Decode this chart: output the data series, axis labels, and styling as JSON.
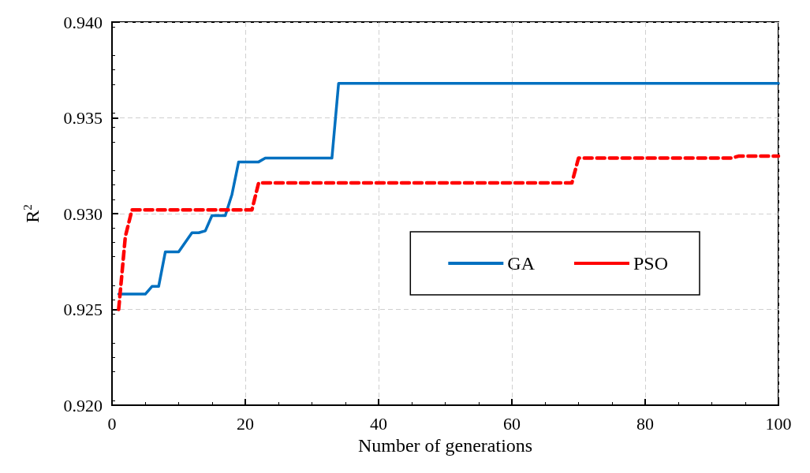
{
  "chart_data": {
    "type": "line",
    "xlabel": "Number of generations",
    "ylabel": "R$^{2}$",
    "xlim": [
      0,
      100
    ],
    "xticks": [
      0,
      20,
      40,
      60,
      80,
      100
    ],
    "ylim": [
      0.92,
      0.94
    ],
    "yticks": [
      {
        "value": 0.92,
        "label": "0.920"
      },
      {
        "value": 0.925,
        "label": "0.925"
      },
      {
        "value": 0.93,
        "label": "0.930"
      },
      {
        "value": 0.935,
        "label": "0.935"
      },
      {
        "value": 0.94,
        "label": "0.940"
      }
    ],
    "grid": true,
    "legend": "center right",
    "marker": "none",
    "series": [
      {
        "name": "GA",
        "color": "#0070c0",
        "line_style": "solid",
        "x": [
          1,
          5,
          6,
          7,
          8,
          10,
          12,
          13,
          14,
          15,
          17,
          18,
          19,
          22,
          23,
          33,
          34,
          100
        ],
        "values": [
          0.9258,
          0.9258,
          0.9262,
          0.9262,
          0.928,
          0.928,
          0.929,
          0.929,
          0.9291,
          0.9299,
          0.9299,
          0.931,
          0.9327,
          0.9327,
          0.9329,
          0.9329,
          0.9368,
          0.9368
        ]
      },
      {
        "name": "PSO",
        "color": "#ff0000",
        "line_style": "dashed",
        "x": [
          1,
          2,
          3,
          21,
          22,
          69,
          70,
          93,
          94,
          100
        ],
        "values": [
          0.925,
          0.9288,
          0.9302,
          0.9302,
          0.9316,
          0.9316,
          0.9329,
          0.9329,
          0.933,
          0.933
        ]
      }
    ]
  }
}
